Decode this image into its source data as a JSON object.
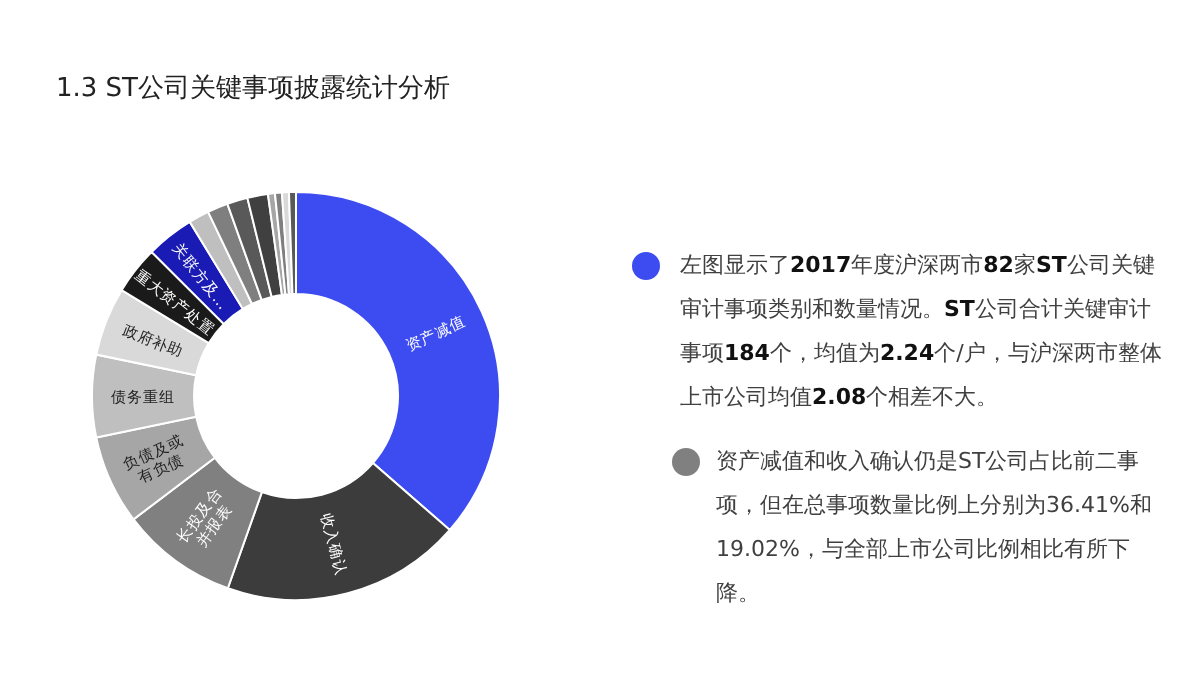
{
  "chart_data": {
    "type": "donut",
    "title": "1.3  ST公司关键事项披露统计分析",
    "categories": [
      "资产减值",
      "收入确认",
      "长投及合并报表",
      "负债及或有负债",
      "债务重组",
      "政府补助",
      "重大资产处置",
      "关联方及…",
      null,
      null,
      null,
      null,
      null,
      null,
      null,
      null
    ],
    "values": [
      36.41,
      19.02,
      9.24,
      7.07,
      6.52,
      5.43,
      3.8,
      3.8,
      1.63,
      1.63,
      1.63,
      1.63,
      0.55,
      0.55,
      0.55,
      0.55
    ],
    "colors": [
      "#3d4cf0",
      "#3c3c3c",
      "#808080",
      "#a6a6a6",
      "#bfbfbf",
      "#d9d9d9",
      "#1a1a1a",
      "#1a1ab4",
      "#bfbfbf",
      "#7f7f7f",
      "#595959",
      "#404040",
      "#a6a6a6",
      "#7f7f7f",
      "#d9d9d9",
      "#595959"
    ],
    "annotations": [
      "左图显示了**2017**年度沪深两市**82**家**ST**公司关键审计事项类别和数量情况。**ST**公司合计关键审计事项**184**个，均值为**2.24**个/户，与沪深两市整体上市公司均值**2.08**个相差不大。",
      "资产减值和收入确认仍是ST公司占比前二事项，但在总事项数量比例上分别为36.41%和19.02%，与全部上市公司比例相比有所下降。"
    ]
  }
}
